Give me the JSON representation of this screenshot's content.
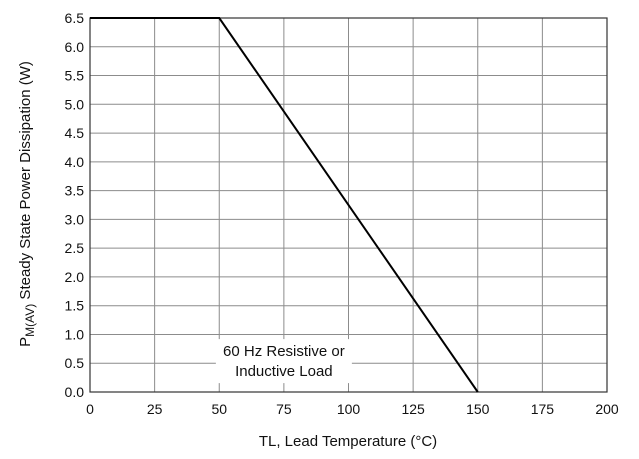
{
  "chart_data": {
    "type": "line",
    "title": "",
    "xlabel": "TL, Lead Temperature (°C)",
    "ylabel": {
      "prefix": "P",
      "subscript": "M(AV)",
      "suffix": " Steady State Power Dissipation (W)"
    },
    "xlim": [
      0,
      200
    ],
    "ylim": [
      0,
      6.5
    ],
    "x_ticks": [
      0,
      25,
      50,
      75,
      100,
      125,
      150,
      175,
      200
    ],
    "x_tick_labels": [
      "0",
      "25",
      "50",
      "75",
      "100",
      "125",
      "150",
      "175",
      "200"
    ],
    "y_ticks": [
      0,
      0.5,
      1,
      1.5,
      2,
      2.5,
      3,
      3.5,
      4,
      4.5,
      5,
      5.5,
      6,
      6.5
    ],
    "y_tick_labels": [
      "0.0",
      "0.5",
      "1.0",
      "1.5",
      "2.0",
      "2.5",
      "3.0",
      "3.5",
      "4.0",
      "4.5",
      "5.0",
      "5.5",
      "6.0",
      "6.5"
    ],
    "grid": true,
    "series": [
      {
        "x": [
          0,
          50,
          150
        ],
        "y": [
          6.5,
          6.5,
          0
        ]
      }
    ],
    "annotations": [
      {
        "lines": [
          "60 Hz Resistive or",
          "Inductive Load"
        ],
        "x": 75,
        "y": 0.45
      }
    ],
    "colors": {
      "line": "#000000",
      "grid": "#8c8c8c",
      "frame": "#333333"
    }
  }
}
